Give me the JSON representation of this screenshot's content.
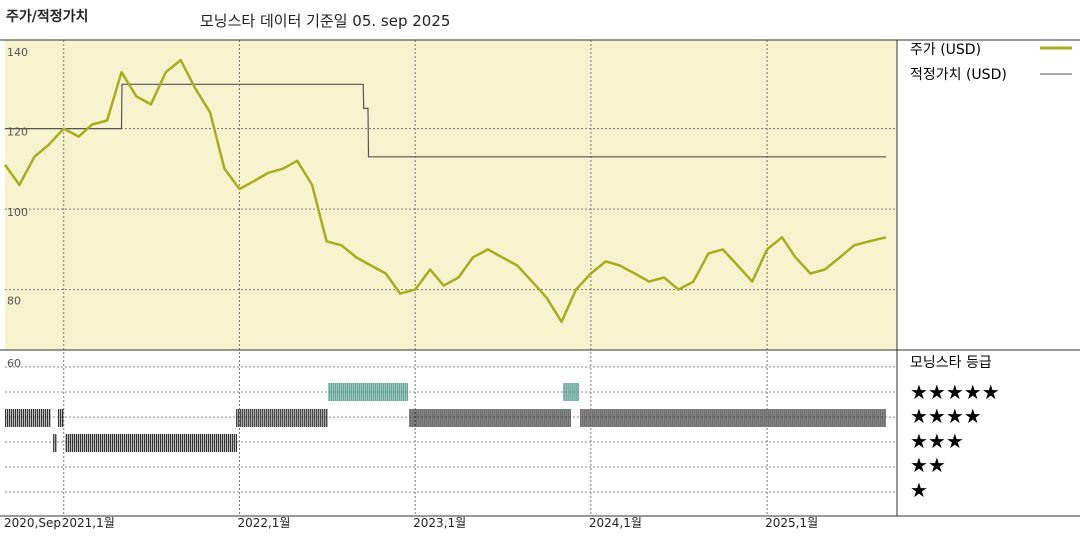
{
  "title": "주가/적정가치",
  "subtitle": "모닝스타 데이터 기준일 05. sep 2025",
  "colors": {
    "price": "#a8ad1e",
    "fair": "#555555",
    "panel_bg": "#f8f3cf",
    "rating_dark": "#333333",
    "rating_teal": "#3f8f7a"
  },
  "legend": {
    "price_label": "주가 (USD)",
    "fair_label": "적정가치 (USD)",
    "rating_title": "모닝스타 등급",
    "stars": [
      "★★★★★",
      "★★★★",
      "★★★",
      "★★",
      "★"
    ]
  },
  "chart_data": {
    "type": "line",
    "ylim": [
      65,
      142
    ],
    "y_ticks": [
      "140",
      "120",
      "100",
      "80",
      "60"
    ],
    "x_ticks": [
      "2020,Sep",
      "2021,1월",
      "2022,1월",
      "2023,1월",
      "2024,1월",
      "2025,1월"
    ],
    "grid": true,
    "series": [
      {
        "name": "주가 (USD)",
        "points": [
          [
            "2020-09-01",
            111
          ],
          [
            "2020-10-01",
            106
          ],
          [
            "2020-11-01",
            113
          ],
          [
            "2020-12-01",
            116
          ],
          [
            "2021-01-01",
            120
          ],
          [
            "2021-02-01",
            118
          ],
          [
            "2021-03-01",
            121
          ],
          [
            "2021-04-01",
            122
          ],
          [
            "2021-05-01",
            134
          ],
          [
            "2021-06-01",
            128
          ],
          [
            "2021-07-01",
            126
          ],
          [
            "2021-08-01",
            134
          ],
          [
            "2021-09-01",
            137
          ],
          [
            "2021-10-01",
            130
          ],
          [
            "2021-11-01",
            124
          ],
          [
            "2021-12-01",
            110
          ],
          [
            "2022-01-01",
            105
          ],
          [
            "2022-02-01",
            107
          ],
          [
            "2022-03-01",
            109
          ],
          [
            "2022-04-01",
            110
          ],
          [
            "2022-05-01",
            112
          ],
          [
            "2022-06-01",
            106
          ],
          [
            "2022-07-01",
            92
          ],
          [
            "2022-08-01",
            91
          ],
          [
            "2022-09-01",
            88
          ],
          [
            "2022-10-01",
            86
          ],
          [
            "2022-11-01",
            84
          ],
          [
            "2022-12-01",
            79
          ],
          [
            "2023-01-01",
            80
          ],
          [
            "2023-02-01",
            85
          ],
          [
            "2023-03-01",
            81
          ],
          [
            "2023-04-01",
            83
          ],
          [
            "2023-05-01",
            88
          ],
          [
            "2023-06-01",
            90
          ],
          [
            "2023-07-01",
            88
          ],
          [
            "2023-08-01",
            86
          ],
          [
            "2023-09-01",
            82
          ],
          [
            "2023-10-01",
            78
          ],
          [
            "2023-11-01",
            72
          ],
          [
            "2023-12-01",
            80
          ],
          [
            "2024-01-01",
            84
          ],
          [
            "2024-02-01",
            87
          ],
          [
            "2024-03-01",
            86
          ],
          [
            "2024-04-01",
            84
          ],
          [
            "2024-05-01",
            82
          ],
          [
            "2024-06-01",
            83
          ],
          [
            "2024-07-01",
            80
          ],
          [
            "2024-08-01",
            82
          ],
          [
            "2024-09-01",
            89
          ],
          [
            "2024-10-01",
            90
          ],
          [
            "2024-11-01",
            86
          ],
          [
            "2024-12-01",
            82
          ],
          [
            "2025-01-01",
            90
          ],
          [
            "2025-02-01",
            93
          ],
          [
            "2025-03-01",
            88
          ],
          [
            "2025-04-01",
            84
          ],
          [
            "2025-05-01",
            85
          ],
          [
            "2025-06-01",
            88
          ],
          [
            "2025-07-01",
            91
          ],
          [
            "2025-08-01",
            92
          ],
          [
            "2025-09-05",
            93
          ]
        ]
      },
      {
        "name": "적정가치 (USD)",
        "points": [
          [
            "2020-09-01",
            120
          ],
          [
            "2021-05-01",
            120
          ],
          [
            "2021-05-02",
            131
          ],
          [
            "2022-09-15",
            131
          ],
          [
            "2022-09-16",
            125
          ],
          [
            "2022-09-25",
            125
          ],
          [
            "2022-09-26",
            113
          ],
          [
            "2025-09-05",
            113
          ]
        ]
      }
    ],
    "rating_bands": [
      {
        "stars": 4,
        "segments": [
          [
            "2020-09-01",
            "2020-12-05"
          ],
          [
            "2020-12-20",
            "2020-12-30"
          ],
          [
            "2021-12-25",
            "2022-07-01"
          ],
          [
            "2022-12-20",
            "2023-11-20"
          ],
          [
            "2023-12-10",
            "2025-09-05"
          ]
        ]
      },
      {
        "stars": 3,
        "segments": [
          [
            "2020-12-10",
            "2020-12-16"
          ],
          [
            "2021-01-05",
            "2021-12-25"
          ]
        ]
      },
      {
        "stars": 5,
        "segments": [
          [
            "2022-07-05",
            "2022-12-15"
          ],
          [
            "2023-11-05",
            "2023-12-08"
          ]
        ]
      }
    ]
  }
}
